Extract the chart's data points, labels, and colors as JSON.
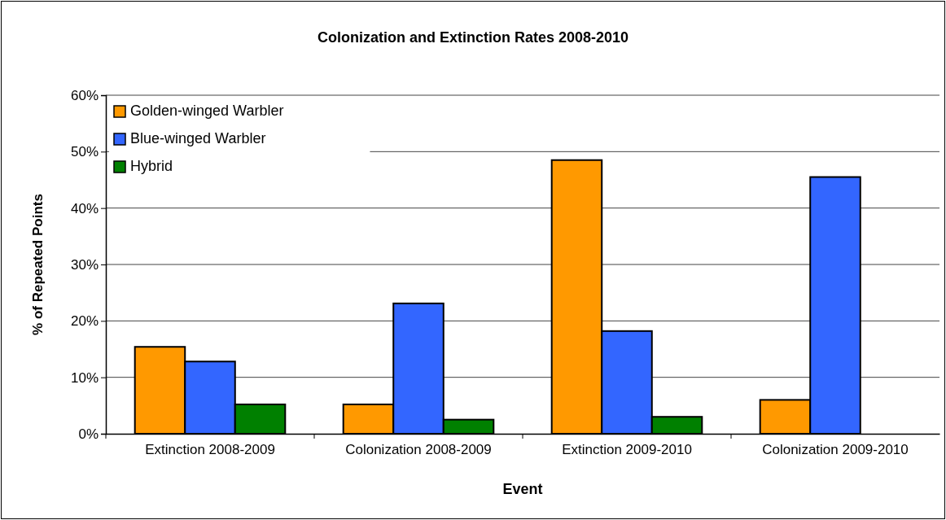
{
  "chart_data": {
    "type": "bar",
    "title": "Colonization and Extinction Rates 2008-2010",
    "xlabel": "Event",
    "ylabel": "% of Repeated Points",
    "categories": [
      "Extinction 2008-2009",
      "Colonization 2008-2009",
      "Extinction 2009-2010",
      "Colonization 2009-2010"
    ],
    "series": [
      {
        "name": "Golden-winged Warbler",
        "color": "#ff9900",
        "values": [
          15.4,
          5.2,
          48.5,
          6.0
        ]
      },
      {
        "name": "Blue-winged Warbler",
        "color": "#3366ff",
        "values": [
          12.8,
          23.1,
          18.2,
          45.5
        ]
      },
      {
        "name": "Hybrid",
        "color": "#008000",
        "values": [
          5.2,
          2.5,
          3.0,
          0
        ]
      }
    ],
    "ylim": [
      0,
      60
    ],
    "yticks": [
      {
        "value": 0,
        "label": "0%"
      },
      {
        "value": 10,
        "label": "10%"
      },
      {
        "value": 20,
        "label": "20%"
      },
      {
        "value": 30,
        "label": "30%"
      },
      {
        "value": 40,
        "label": "40%"
      },
      {
        "value": 50,
        "label": "50%"
      },
      {
        "value": 60,
        "label": "60%"
      }
    ],
    "grid": "y",
    "legend": "top left"
  }
}
